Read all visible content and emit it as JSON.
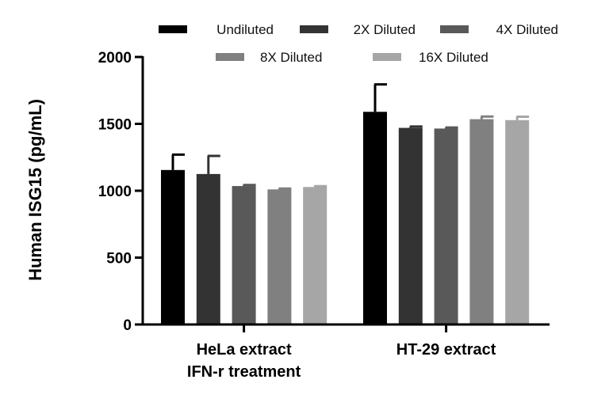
{
  "chart_data": {
    "type": "bar",
    "title": "",
    "xlabel": "",
    "ylabel": "Human ISG15 (pg/mL)",
    "ylim": [
      0,
      2000
    ],
    "yticks": [
      0,
      500,
      1000,
      1500,
      2000
    ],
    "categories": [
      {
        "lines": [
          "HeLa extract",
          "IFN-r treatment"
        ]
      },
      {
        "lines": [
          "HT-29 extract"
        ]
      }
    ],
    "series": [
      {
        "name": "Undiluted",
        "color": "#000000",
        "values": [
          1155,
          1590
        ],
        "errors": [
          115,
          205
        ]
      },
      {
        "name": "2X Diluted",
        "color": "#333333",
        "values": [
          1125,
          1470
        ],
        "errors": [
          135,
          10
        ]
      },
      {
        "name": "4X Diluted",
        "color": "#595959",
        "values": [
          1035,
          1465
        ],
        "errors": [
          8,
          8
        ]
      },
      {
        "name": "8X Diluted",
        "color": "#808080",
        "values": [
          1010,
          1535
        ],
        "errors": [
          6,
          20
        ]
      },
      {
        "name": "16X Diluted",
        "color": "#a6a6a6",
        "values": [
          1028,
          1528
        ],
        "errors": [
          6,
          25
        ]
      }
    ],
    "legend_position": "top"
  }
}
